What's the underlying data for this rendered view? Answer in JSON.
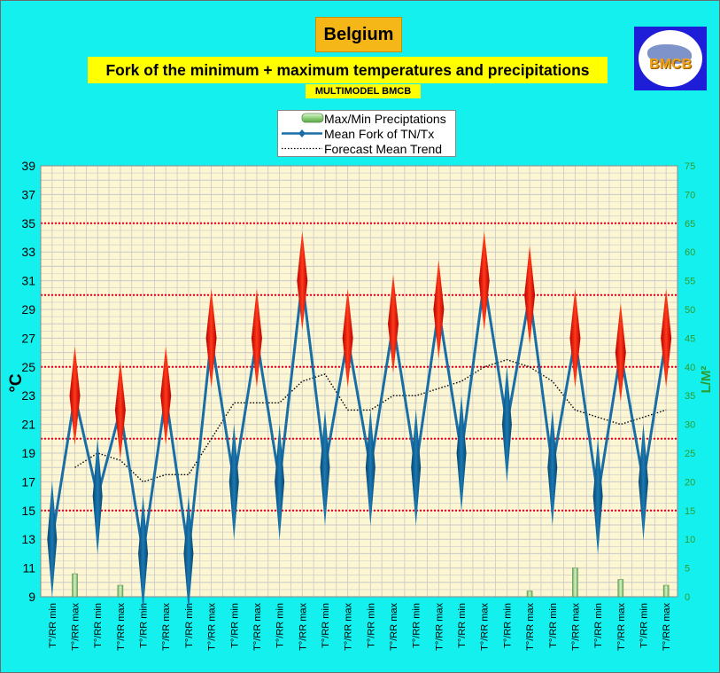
{
  "header": {
    "country": "Belgium",
    "subtitle": "Fork of the minimum + maximum temperatures and precipitations",
    "source": "MULTIMODEL BMCB"
  },
  "logo": {
    "text": "BMCB"
  },
  "legend": {
    "items": [
      {
        "label": "Max/Min Preciptations",
        "symbol": "precip-bar-icon"
      },
      {
        "label": "Mean Fork of TN/Tx",
        "symbol": "line-diamond-icon"
      },
      {
        "label": "Forecast Mean Trend",
        "symbol": "dotted-line-icon"
      }
    ]
  },
  "colors": {
    "background": "#14f0ee",
    "plot_background": "#fdf6d2",
    "grid": "#c9c9c9",
    "mean_line": "#1a6ea6",
    "min_marker": "#0b5e92",
    "max_marker": "#e01414",
    "threshold_line": "#e0001b",
    "trend": "#000000",
    "precip": "#8fd07a",
    "right_axis": "#2e9a2e"
  },
  "chart_data": {
    "type": "line",
    "ylabel": "°C",
    "y2label": "L/M²",
    "ylim": [
      9,
      39
    ],
    "yticks": [
      9,
      11,
      13,
      15,
      17,
      19,
      21,
      23,
      25,
      27,
      29,
      31,
      33,
      35,
      37,
      39
    ],
    "y2lim": [
      0,
      75
    ],
    "y2ticks": [
      0,
      5,
      10,
      15,
      20,
      25,
      30,
      35,
      40,
      45,
      50,
      55,
      60,
      65,
      70,
      75
    ],
    "grid": true,
    "threshold_lines": [
      15,
      20,
      25,
      30,
      35
    ],
    "categories": [
      "T°/RR min",
      "T°/RR max",
      "T°/RR min",
      "T°/RR max",
      "T°/RR min",
      "T°/RR max",
      "T°/RR min",
      "T°/RR max",
      "T°/RR min",
      "T°/RR max",
      "T°/RR min",
      "T°/RR max",
      "T°/RR min",
      "T°/RR max",
      "T°/RR min",
      "T°/RR max",
      "T°/RR min",
      "T°/RR max",
      "T°/RR min",
      "T°/RR max",
      "T°/RR min",
      "T°/RR max",
      "T°/RR min",
      "T°/RR max",
      "T°/RR min",
      "T°/RR max",
      "T°/RR min",
      "T°/RR max"
    ],
    "series": [
      {
        "name": "Mean Fork of TN/Tx",
        "values": [
          13,
          23,
          16,
          22,
          12,
          23,
          12,
          27,
          17,
          27,
          17,
          31,
          18,
          27,
          18,
          28,
          18,
          29,
          19,
          31,
          21,
          30,
          18,
          27,
          16,
          26,
          17,
          27
        ]
      },
      {
        "name": "Forecast Mean Trend",
        "values": [
          null,
          18,
          19,
          18.5,
          17,
          17.5,
          17.5,
          20,
          22.5,
          22.5,
          22.5,
          24,
          24.5,
          22,
          22,
          23,
          23,
          23.5,
          24,
          25,
          25.5,
          25,
          24,
          22,
          21.5,
          21,
          21.5,
          22
        ]
      },
      {
        "name": "Max/Min Preciptations",
        "axis": "right",
        "values": [
          0,
          4,
          0,
          2,
          0,
          0,
          0,
          0,
          0,
          0,
          0,
          0,
          0,
          0,
          0,
          0,
          0,
          0,
          0,
          0,
          0,
          1,
          0,
          5,
          0,
          3,
          0,
          2
        ]
      }
    ]
  }
}
